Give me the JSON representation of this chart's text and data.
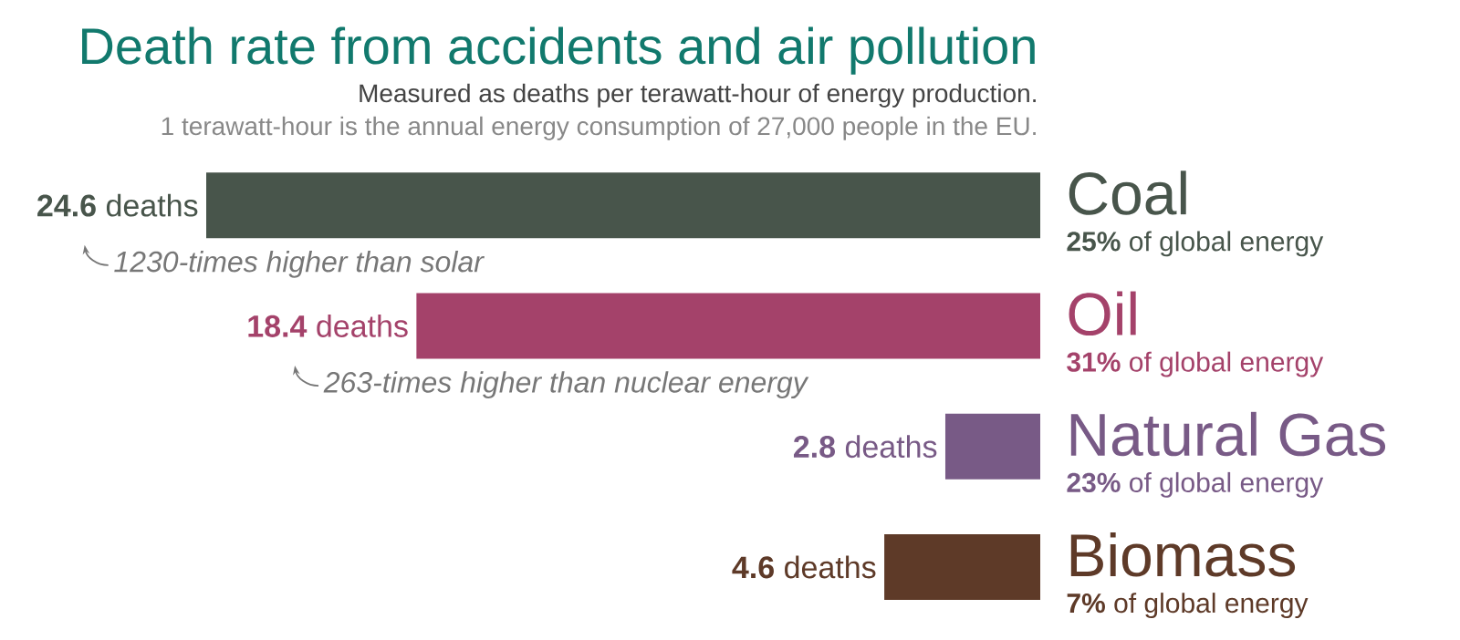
{
  "chart_data": {
    "type": "bar",
    "orientation": "horizontal",
    "title": "Death rate from accidents and air pollution",
    "subtitle": "Measured as deaths per terawatt-hour of energy production.",
    "categories": [
      "Coal",
      "Oil",
      "Natural Gas",
      "Biomass"
    ],
    "values": [
      24.6,
      18.4,
      2.8,
      4.6
    ],
    "colors": [
      "#48554b",
      "#a4426a",
      "#785a86",
      "#5e3a28"
    ],
    "value_labels": [
      "**24.6** deaths",
      "**18.4** deaths",
      "**2.8** deaths",
      "**4.6** deaths"
    ],
    "annotations": [
      "1 terawatt-hour is the annual energy consumption of 27,000 people in the EU.",
      "**25%** of global energy",
      "**31%** of global energy",
      "**23%** of global energy",
      "**7%** of global energy",
      "1230-times higher than solar",
      "263-times higher than nuclear energy"
    ]
  }
}
